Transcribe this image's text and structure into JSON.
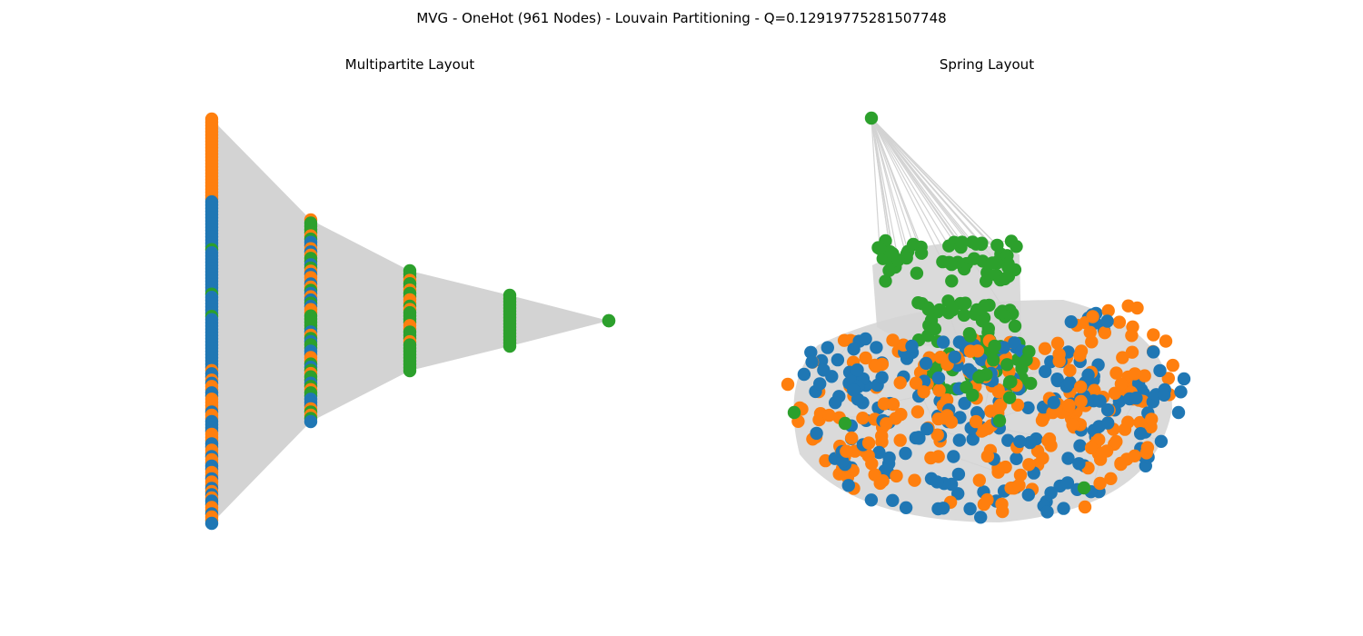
{
  "figure": {
    "title": "MVG - OneHot (961 Nodes) - Louvain Partitioning - Q=0.12919775281507748"
  },
  "panels": [
    {
      "title": "Multipartite Layout"
    },
    {
      "title": "Spring Layout"
    }
  ],
  "colors": {
    "community_0": "#1f77b4",
    "community_1": "#ff7f0e",
    "community_2": "#2ca02c",
    "edge": "#d3d3d3",
    "background": "#ffffff"
  },
  "graph": {
    "node_count": 961,
    "partitioning": "Louvain",
    "modularity": 0.12919775281507748,
    "multipartite_layers": [
      {
        "layer": 0,
        "colors": [
          "community_1",
          "community_0",
          "community_1"
        ]
      },
      {
        "layer": 1,
        "colors": [
          "community_2",
          "community_0",
          "community_1"
        ]
      },
      {
        "layer": 2,
        "colors": [
          "community_2",
          "community_1"
        ]
      },
      {
        "layer": 3,
        "colors": [
          "community_2"
        ]
      },
      {
        "layer": 4,
        "colors": [
          "community_2"
        ]
      }
    ]
  }
}
